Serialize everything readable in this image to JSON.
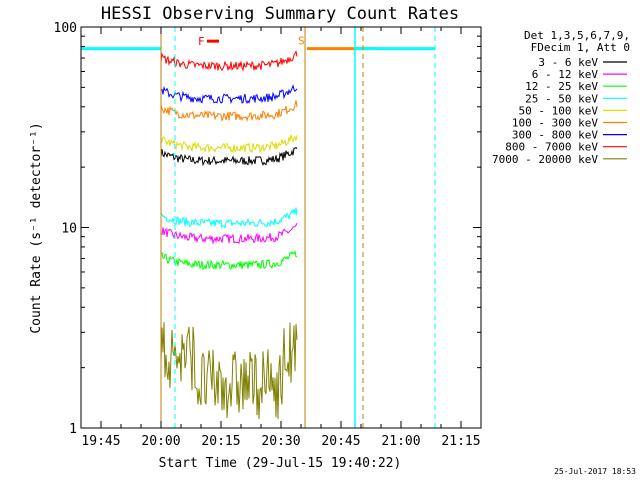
{
  "chart_data": {
    "type": "line",
    "title": "HESSI Observing Summary Count Rates",
    "xlabel": "Start Time (29-Jul-15 19:40:22)",
    "ylabel": "Count Rate (s⁻¹ detector⁻¹)",
    "yscale": "log",
    "ylim": [
      1,
      100
    ],
    "xlim_minutes": [
      0,
      100
    ],
    "x_ticks": [
      "19:45",
      "20:00",
      "20:15",
      "20:30",
      "20:45",
      "21:00",
      "21:15"
    ],
    "y_ticks": [
      "1",
      "10",
      "100"
    ],
    "legend_header": [
      "Det 1,3,5,6,7,9,",
      "FDecim 1, Att 0"
    ],
    "legend_position": "top-right",
    "series": [
      {
        "name": "3 - 6 keV",
        "color": "#000000",
        "level": 21.5,
        "start": 20.0,
        "end": 54.0
      },
      {
        "name": "6 - 12 keV",
        "color": "#ff00ff",
        "level": 8.8,
        "start": 20.0,
        "end": 54.0
      },
      {
        "name": "12 - 25 keV",
        "color": "#00ff00",
        "level": 6.5,
        "start": 20.0,
        "end": 54.0
      },
      {
        "name": "25 - 50 keV",
        "color": "#00ffff",
        "level": 10.5,
        "start": 20.0,
        "end": 54.0
      },
      {
        "name": "50 - 100 keV",
        "color": "#dddd00",
        "level": 25.0,
        "start": 20.0,
        "end": 54.0
      },
      {
        "name": "100 - 300 keV",
        "color": "#ff8000",
        "level": 36.0,
        "start": 20.0,
        "end": 54.0
      },
      {
        "name": "300 - 800 keV",
        "color": "#0000ff",
        "level": 44.0,
        "start": 20.0,
        "end": 54.0
      },
      {
        "name": "800 - 7000 keV",
        "color": "#ff0000",
        "level": 64.0,
        "start": 20.0,
        "end": 54.0
      },
      {
        "name": "7000 - 20000 keV",
        "color": "#808000",
        "level": 2.3,
        "start": 20.0,
        "end": 54.0
      }
    ],
    "annotations": [
      {
        "label": "F",
        "color": "#ff0000",
        "x_start": 31.5,
        "x_end": 34.5,
        "y": 85
      },
      {
        "label": "S",
        "color": "#ff8000",
        "x_start": 56.5,
        "x_end": 74.0,
        "y": 78
      }
    ],
    "night_markers": {
      "color": "#00ffff",
      "solid_x": [
        0,
        20.0,
        54.0,
        68.5
      ],
      "dashed_x": [
        23.5,
        88.5
      ],
      "level": 78
    },
    "saa_markers": {
      "color": "#c08000",
      "solid_x": [
        20.0,
        56.0
      ],
      "dashed_x": [
        70.5
      ]
    },
    "timestamp": "25-Jul-2017 18:53"
  }
}
